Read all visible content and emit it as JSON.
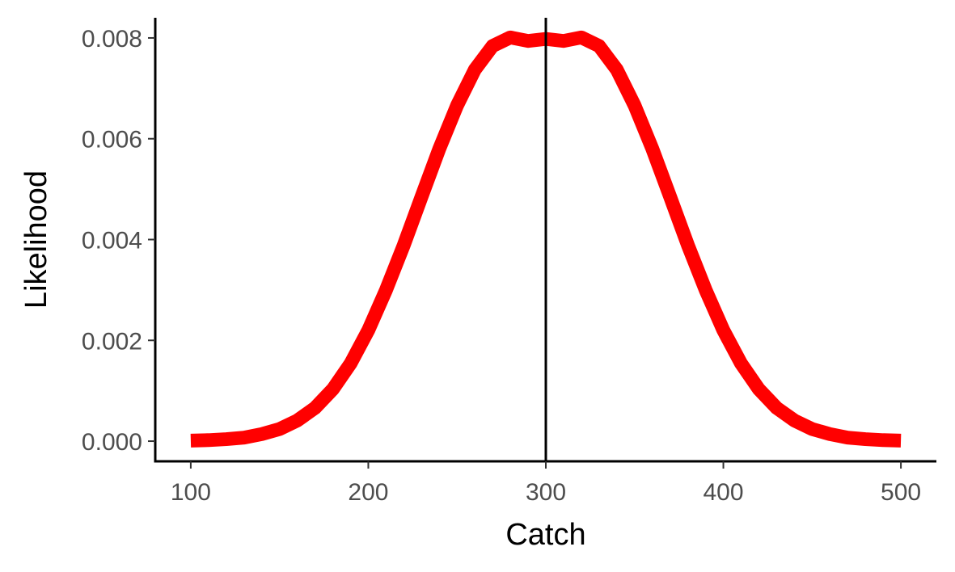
{
  "chart_data": {
    "type": "line",
    "title": "",
    "xlabel": "Catch",
    "ylabel": "Likelihood",
    "xlim": [
      80,
      520
    ],
    "ylim": [
      -0.0004,
      0.0084
    ],
    "x_ticks": [
      100,
      200,
      300,
      400,
      500
    ],
    "x_tick_labels": [
      "100",
      "200",
      "300",
      "400",
      "500"
    ],
    "y_ticks": [
      0,
      0.002,
      0.004,
      0.006,
      0.008
    ],
    "y_tick_labels": [
      "0.000",
      "0.002",
      "0.004",
      "0.006",
      "0.008"
    ],
    "grid": false,
    "legend": "none",
    "series": [
      {
        "color": "#ff0000",
        "x": [
          100,
          110,
          120,
          130,
          140,
          150,
          160,
          170,
          180,
          190,
          200,
          210,
          220,
          230,
          240,
          250,
          260,
          270,
          280,
          290,
          300,
          310,
          320,
          330,
          340,
          350,
          360,
          370,
          380,
          390,
          400,
          410,
          420,
          430,
          440,
          450,
          460,
          470,
          480,
          490,
          500
        ],
        "values": [
          1e-05,
          2e-05,
          4e-05,
          7e-05,
          0.00014,
          0.00024,
          0.00041,
          0.00066,
          0.00103,
          0.00154,
          0.0022,
          0.003,
          0.00389,
          0.00485,
          0.0058,
          0.00666,
          0.00737,
          0.00784,
          0.00801,
          0.00794,
          0.00798,
          0.00794,
          0.00801,
          0.00784,
          0.00737,
          0.00666,
          0.0058,
          0.00485,
          0.00389,
          0.003,
          0.0022,
          0.00154,
          0.00103,
          0.00066,
          0.00041,
          0.00024,
          0.00014,
          7e-05,
          4e-05,
          2e-05,
          1e-05
        ]
      }
    ],
    "reference_lines": [
      {
        "axis": "x",
        "value": 300,
        "color": "#000000"
      }
    ]
  }
}
